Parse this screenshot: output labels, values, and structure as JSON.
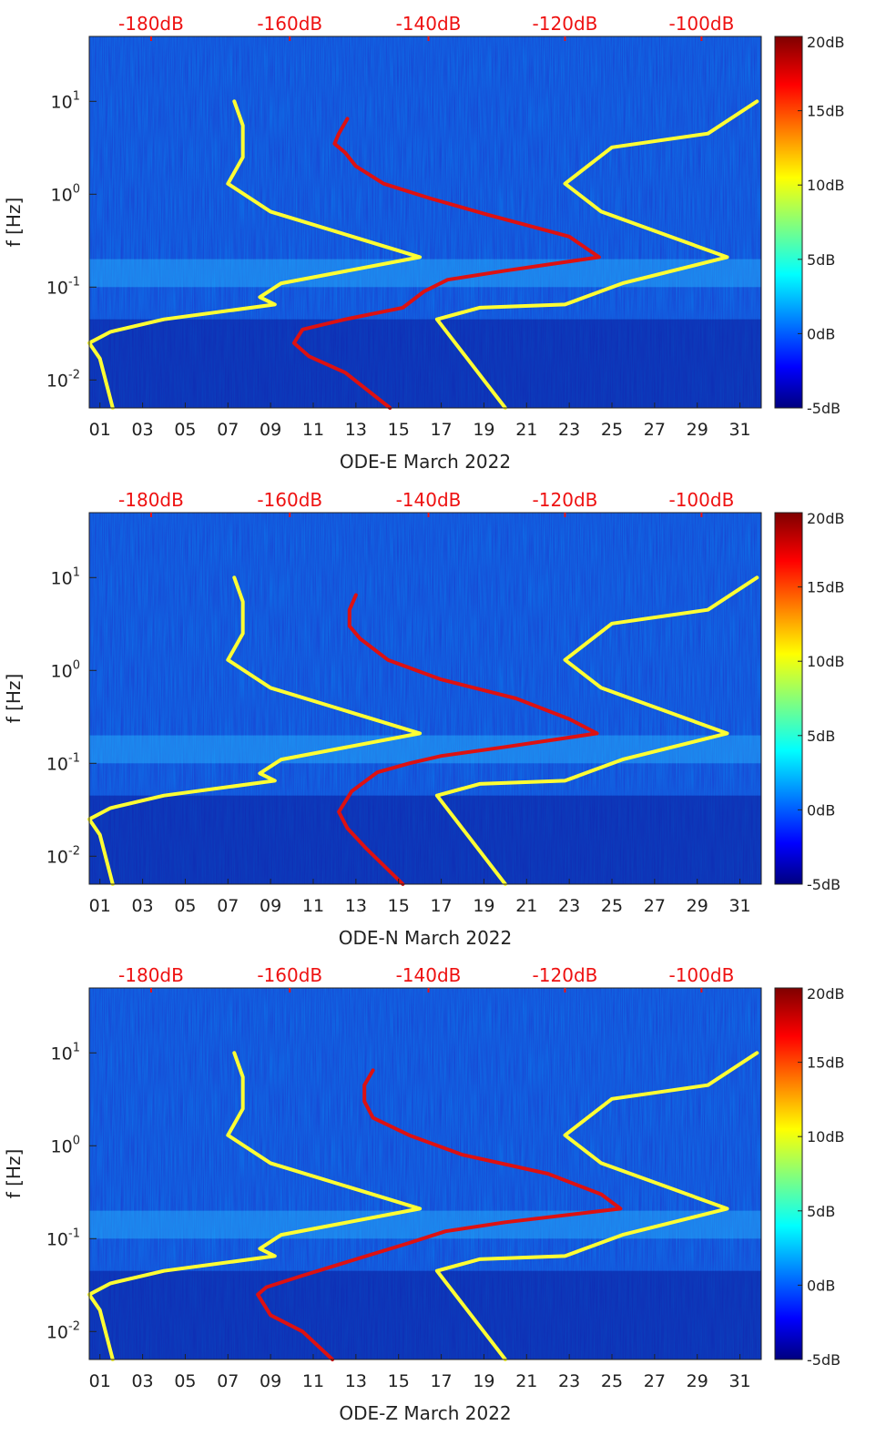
{
  "chart_data": [
    {
      "type": "heatmap",
      "xlabel": "ODE-E March 2022",
      "ylabel": "f [Hz]",
      "x_ticks": [
        "01",
        "03",
        "05",
        "07",
        "09",
        "11",
        "13",
        "15",
        "17",
        "19",
        "21",
        "23",
        "25",
        "27",
        "29",
        "31"
      ],
      "y_ticks": [
        "10^-2",
        "10^-1",
        "10^0",
        "10^1"
      ],
      "y_scale": "log",
      "ylim": [
        0.005,
        50
      ],
      "top_axis_ticks": [
        "-180dB",
        "-160dB",
        "-140dB",
        "-120dB",
        "-100dB"
      ],
      "colorbar": {
        "ticks": [
          "20dB",
          "15dB",
          "10dB",
          "5dB",
          "0dB",
          "-5dB"
        ],
        "range": [
          -5,
          20
        ]
      },
      "series": [
        {
          "color": "#ffff33",
          "x": [
            7.3,
            7.7,
            7.7,
            7.0,
            9.0,
            16.0,
            9.5,
            8.5,
            9.2,
            4.0,
            1.5,
            0.5,
            1.0,
            1.6
          ],
          "y": [
            10,
            5.5,
            2.5,
            1.3,
            0.65,
            0.21,
            0.11,
            0.078,
            0.065,
            0.045,
            0.033,
            0.025,
            0.017,
            0.005
          ]
        },
        {
          "color": "#ffff33",
          "x": [
            31.8,
            29.5,
            25.0,
            22.8,
            24.5,
            30.4,
            25.5,
            22.8,
            18.8,
            16.8,
            20.0
          ],
          "y": [
            10,
            4.5,
            3.2,
            1.3,
            0.65,
            0.21,
            0.11,
            0.065,
            0.06,
            0.045,
            0.005
          ]
        },
        {
          "color": "#dd1111",
          "x": [
            12.6,
            12.2,
            12.0,
            12.5,
            13.0,
            14.3,
            16.5,
            19.2,
            23.0,
            24.4,
            20.0,
            17.3,
            16.2,
            15.2,
            12.5,
            10.5,
            10.1,
            10.8,
            12.5,
            14.6
          ],
          "y": [
            6.5,
            4.5,
            3.5,
            2.8,
            2.0,
            1.3,
            0.9,
            0.6,
            0.35,
            0.21,
            0.15,
            0.12,
            0.09,
            0.06,
            0.045,
            0.035,
            0.025,
            0.018,
            0.012,
            0.005
          ]
        }
      ]
    },
    {
      "type": "heatmap",
      "xlabel": "ODE-N March 2022",
      "ylabel": "f [Hz]",
      "x_ticks": [
        "01",
        "03",
        "05",
        "07",
        "09",
        "11",
        "13",
        "15",
        "17",
        "19",
        "21",
        "23",
        "25",
        "27",
        "29",
        "31"
      ],
      "y_ticks": [
        "10^-2",
        "10^-1",
        "10^0",
        "10^1"
      ],
      "y_scale": "log",
      "ylim": [
        0.005,
        50
      ],
      "top_axis_ticks": [
        "-180dB",
        "-160dB",
        "-140dB",
        "-120dB",
        "-100dB"
      ],
      "colorbar": {
        "ticks": [
          "20dB",
          "15dB",
          "10dB",
          "5dB",
          "0dB",
          "-5dB"
        ],
        "range": [
          -5,
          20
        ]
      },
      "series": [
        {
          "color": "#ffff33",
          "x": [
            7.3,
            7.7,
            7.7,
            7.0,
            9.0,
            16.0,
            9.5,
            8.5,
            9.2,
            4.0,
            1.5,
            0.5,
            1.0,
            1.6
          ],
          "y": [
            10,
            5.5,
            2.5,
            1.3,
            0.65,
            0.21,
            0.11,
            0.078,
            0.065,
            0.045,
            0.033,
            0.025,
            0.017,
            0.005
          ]
        },
        {
          "color": "#ffff33",
          "x": [
            31.8,
            29.5,
            25.0,
            22.8,
            24.5,
            30.4,
            25.5,
            22.8,
            18.8,
            16.8,
            20.0
          ],
          "y": [
            10,
            4.5,
            3.2,
            1.3,
            0.65,
            0.21,
            0.11,
            0.065,
            0.06,
            0.045,
            0.005
          ]
        },
        {
          "color": "#dd1111",
          "x": [
            13.0,
            12.7,
            12.7,
            13.2,
            14.5,
            17.0,
            20.5,
            23.0,
            24.3,
            20.0,
            17.0,
            15.5,
            14.0,
            12.8,
            12.2,
            12.6,
            13.5,
            15.2
          ],
          "y": [
            6.5,
            4.5,
            3.0,
            2.2,
            1.3,
            0.8,
            0.5,
            0.3,
            0.21,
            0.15,
            0.12,
            0.1,
            0.08,
            0.05,
            0.03,
            0.02,
            0.012,
            0.005
          ]
        }
      ]
    },
    {
      "type": "heatmap",
      "xlabel": "ODE-Z March 2022",
      "ylabel": "f [Hz]",
      "x_ticks": [
        "01",
        "03",
        "05",
        "07",
        "09",
        "11",
        "13",
        "15",
        "17",
        "19",
        "21",
        "23",
        "25",
        "27",
        "29",
        "31"
      ],
      "y_ticks": [
        "10^-2",
        "10^-1",
        "10^0",
        "10^1"
      ],
      "y_scale": "log",
      "ylim": [
        0.005,
        50
      ],
      "top_axis_ticks": [
        "-180dB",
        "-160dB",
        "-140dB",
        "-120dB",
        "-100dB"
      ],
      "colorbar": {
        "ticks": [
          "20dB",
          "15dB",
          "10dB",
          "5dB",
          "0dB",
          "-5dB"
        ],
        "range": [
          -5,
          20
        ]
      },
      "series": [
        {
          "color": "#ffff33",
          "x": [
            7.3,
            7.7,
            7.7,
            7.0,
            9.0,
            16.0,
            9.5,
            8.5,
            9.2,
            4.0,
            1.5,
            0.5,
            1.0,
            1.6
          ],
          "y": [
            10,
            5.5,
            2.5,
            1.3,
            0.65,
            0.21,
            0.11,
            0.078,
            0.065,
            0.045,
            0.033,
            0.025,
            0.017,
            0.005
          ]
        },
        {
          "color": "#ffff33",
          "x": [
            31.8,
            29.5,
            25.0,
            22.8,
            24.5,
            30.4,
            25.5,
            22.8,
            18.8,
            16.8,
            20.0
          ],
          "y": [
            10,
            4.5,
            3.2,
            1.3,
            0.65,
            0.21,
            0.11,
            0.065,
            0.06,
            0.045,
            0.005
          ]
        },
        {
          "color": "#dd1111",
          "x": [
            13.8,
            13.4,
            13.4,
            13.8,
            15.5,
            18.0,
            22.0,
            24.5,
            25.4,
            20.0,
            17.2,
            15.5,
            13.0,
            10.5,
            8.8,
            8.4,
            9.0,
            10.5,
            11.9
          ],
          "y": [
            6.5,
            4.5,
            3.0,
            2.0,
            1.3,
            0.8,
            0.5,
            0.3,
            0.21,
            0.15,
            0.12,
            0.09,
            0.06,
            0.04,
            0.03,
            0.025,
            0.015,
            0.01,
            0.005
          ]
        }
      ]
    }
  ]
}
